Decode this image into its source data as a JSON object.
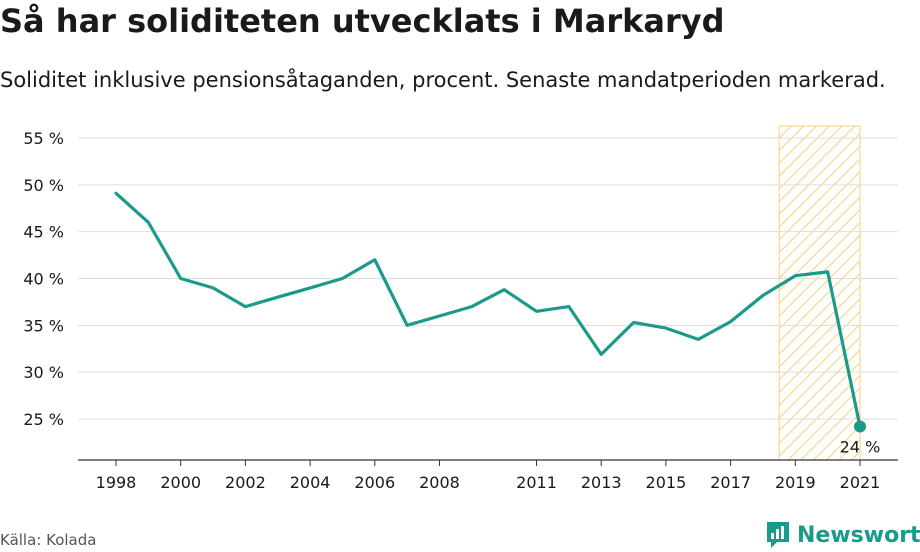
{
  "title": "Så har soliditeten utvecklats i Markaryd",
  "subtitle": "Soliditet inklusive pensionsåtaganden, procent. Senaste mandatperioden markerad.",
  "source": "Källa: Kolada",
  "brand": {
    "name": "Newsworthy",
    "icon": "newsworthy-logo-icon",
    "color": "#1a9a8a"
  },
  "chart_data": {
    "type": "line",
    "title": "Så har soliditeten utvecklats i Markaryd",
    "subtitle": "Soliditet inklusive pensionsåtaganden, procent. Senaste mandatperioden markerad.",
    "x": [
      1998,
      1999,
      2000,
      2001,
      2002,
      2003,
      2004,
      2005,
      2006,
      2007,
      2008,
      2009,
      2010,
      2011,
      2012,
      2013,
      2014,
      2015,
      2016,
      2017,
      2018,
      2019,
      2020,
      2021
    ],
    "series": [
      {
        "values": [
          49.1,
          46.0,
          40.0,
          39.0,
          37.0,
          38.0,
          39.0,
          40.0,
          42.0,
          35.0,
          36.0,
          37.0,
          38.8,
          36.5,
          37.0,
          31.9,
          35.3,
          34.7,
          33.5,
          35.4,
          38.2,
          40.3,
          40.7,
          24.2
        ],
        "color": "#1a9a8a"
      }
    ],
    "xticks": [
      "1998",
      "2000",
      "2002",
      "2004",
      "2006",
      "2008",
      "2011",
      "2013",
      "2015",
      "2017",
      "2019",
      "2021"
    ],
    "xtick_values": [
      1998,
      2000,
      2002,
      2004,
      2006,
      2008,
      2011,
      2013,
      2015,
      2017,
      2019,
      2021
    ],
    "yticks": [
      "25 %",
      "30 %",
      "35 %",
      "40 %",
      "45 %",
      "50 %",
      "55 %"
    ],
    "ytick_values": [
      25,
      30,
      35,
      40,
      45,
      50,
      55
    ],
    "ylim": [
      21,
      56
    ],
    "highlight": {
      "from": 2018.5,
      "to": 2021,
      "color": "#f5d27a"
    },
    "end_label": "24 %",
    "grid": true,
    "legend": "none"
  }
}
